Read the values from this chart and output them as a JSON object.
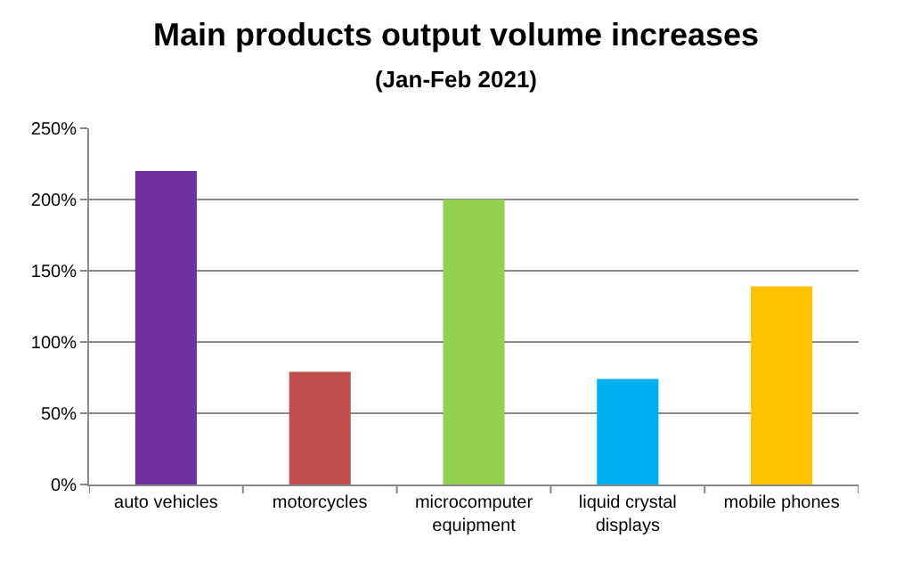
{
  "chart_data": {
    "type": "bar",
    "title": "Main products output volume increases",
    "subtitle": "(Jan-Feb 2021)",
    "categories": [
      "auto vehicles",
      "motorcycles",
      "microcomputer equipment",
      "liquid crystal displays",
      "mobile phones"
    ],
    "values": [
      220,
      79,
      200,
      74,
      139
    ],
    "colors": [
      "#7030a0",
      "#c0504d",
      "#92d050",
      "#00b0f0",
      "#ffc000"
    ],
    "ylim": [
      0,
      250
    ],
    "yticks": [
      {
        "value": 0,
        "label": "0%"
      },
      {
        "value": 50,
        "label": "50%"
      },
      {
        "value": 100,
        "label": "100%"
      },
      {
        "value": 150,
        "label": "150%"
      },
      {
        "value": 200,
        "label": "200%"
      },
      {
        "value": 250,
        "label": "250%"
      }
    ],
    "grid": "y"
  }
}
